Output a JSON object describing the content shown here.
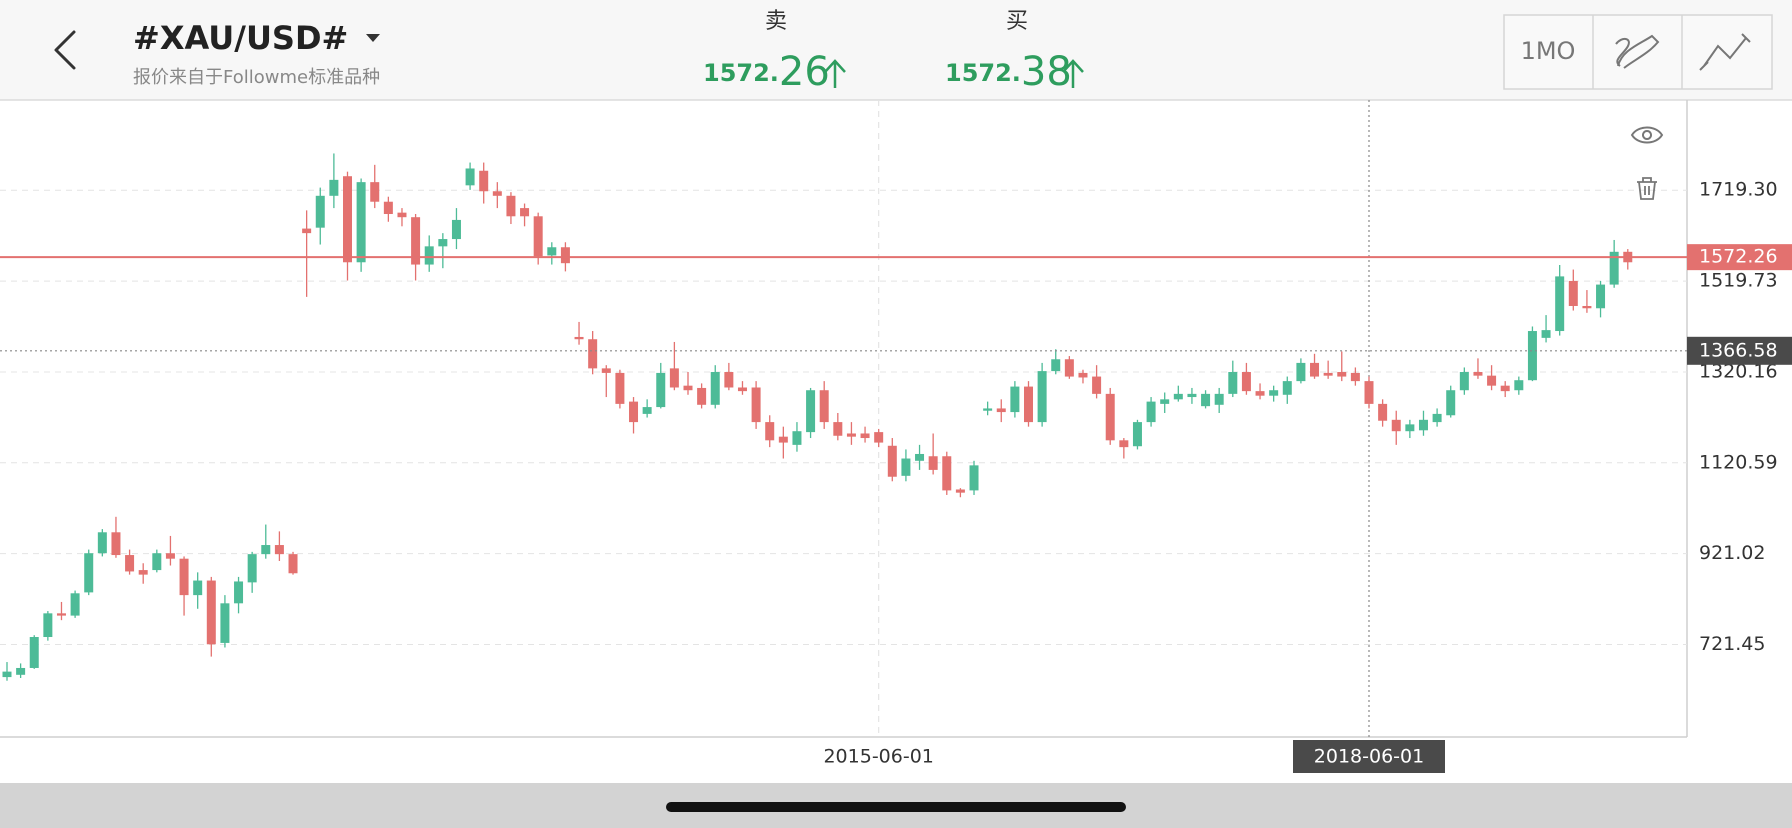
{
  "header": {
    "title": "#XAU/USD#",
    "subtitle": "报价来自于Followme标准品种",
    "sell": {
      "label": "卖",
      "price_int": "1572.",
      "price_frac": "26"
    },
    "buy": {
      "label": "买",
      "price_int": "1572.",
      "price_frac": "38"
    },
    "period": "1MO"
  },
  "chart_data": {
    "type": "candlestick",
    "open": [
      650,
      655,
      670,
      738,
      790,
      785,
      836,
      922,
      968,
      918,
      885,
      885,
      922,
      910,
      830,
      862,
      725,
      812,
      858,
      920,
      940,
      920,
      1635,
      1637,
      1707,
      1750,
      1561,
      1737,
      1694,
      1670,
      1660,
      1556,
      1596,
      1612,
      1730,
      1762,
      1717,
      1707,
      1680,
      1662,
      1576,
      1594,
      1397,
      1392,
      1328,
      1318,
      1255,
      1228,
      1243,
      1328,
      1290,
      1285,
      1248,
      1320,
      1286,
      1286,
      1210,
      1178,
      1160,
      1188,
      1280,
      1210,
      1185,
      1185,
      1188,
      1158,
      1092,
      1125,
      1135,
      1135,
      1062,
      1060,
      1235,
      1240,
      1232,
      1288,
      1210,
      1322,
      1348,
      1318,
      1310,
      1272,
      1170,
      1157,
      1210,
      1250,
      1260,
      1265,
      1245,
      1248,
      1272,
      1320,
      1278,
      1268,
      1270,
      1300,
      1340,
      1318,
      1320,
      1318,
      1300,
      1250,
      1215,
      1190,
      1192,
      1210,
      1225,
      1280,
      1320,
      1312,
      1290,
      1280,
      1302,
      1395,
      1410,
      1520,
      1465,
      1460,
      1512,
      1584
    ],
    "close": [
      662,
      670,
      738,
      790,
      785,
      834,
      922,
      968,
      918,
      882,
      875,
      922,
      910,
      830,
      862,
      722,
      812,
      860,
      920,
      940,
      920,
      878,
      1625,
      1707,
      1742,
      1561,
      1737,
      1694,
      1667,
      1660,
      1556,
      1596,
      1612,
      1654,
      1767,
      1717,
      1707,
      1662,
      1662,
      1574,
      1594,
      1559,
      1392,
      1328,
      1318,
      1250,
      1210,
      1243,
      1318,
      1286,
      1280,
      1248,
      1320,
      1286,
      1278,
      1210,
      1170,
      1165,
      1190,
      1280,
      1210,
      1180,
      1178,
      1175,
      1165,
      1090,
      1130,
      1140,
      1105,
      1060,
      1055,
      1115,
      1240,
      1232,
      1288,
      1210,
      1322,
      1348,
      1310,
      1308,
      1272,
      1170,
      1155,
      1210,
      1255,
      1260,
      1272,
      1272,
      1272,
      1272,
      1320,
      1278,
      1268,
      1280,
      1300,
      1340,
      1310,
      1312,
      1310,
      1300,
      1250,
      1213,
      1190,
      1205,
      1215,
      1228,
      1280,
      1320,
      1312,
      1290,
      1278,
      1302,
      1410,
      1412,
      1530,
      1465,
      1460,
      1512,
      1584,
      1561
    ],
    "high": [
      683,
      680,
      742,
      795,
      815,
      840,
      930,
      975,
      1002,
      930,
      900,
      930,
      960,
      915,
      880,
      870,
      830,
      870,
      925,
      985,
      970,
      925,
      1675,
      1725,
      1800,
      1760,
      1745,
      1775,
      1705,
      1680,
      1667,
      1620,
      1625,
      1680,
      1780,
      1780,
      1737,
      1715,
      1690,
      1670,
      1605,
      1605,
      1430,
      1410,
      1335,
      1325,
      1265,
      1260,
      1340,
      1386,
      1320,
      1295,
      1335,
      1340,
      1300,
      1300,
      1225,
      1200,
      1210,
      1285,
      1300,
      1230,
      1210,
      1200,
      1195,
      1175,
      1150,
      1160,
      1185,
      1145,
      1065,
      1125,
      1255,
      1260,
      1300,
      1300,
      1340,
      1370,
      1355,
      1325,
      1335,
      1285,
      1175,
      1215,
      1265,
      1275,
      1290,
      1285,
      1280,
      1285,
      1345,
      1340,
      1295,
      1290,
      1310,
      1350,
      1360,
      1345,
      1365,
      1330,
      1310,
      1260,
      1235,
      1215,
      1235,
      1240,
      1290,
      1330,
      1350,
      1335,
      1300,
      1310,
      1420,
      1445,
      1555,
      1545,
      1500,
      1520,
      1610,
      1590
    ],
    "low": [
      642,
      648,
      668,
      730,
      775,
      780,
      830,
      915,
      912,
      875,
      855,
      880,
      895,
      785,
      800,
      695,
      715,
      790,
      835,
      910,
      905,
      875,
      1485,
      1600,
      1680,
      1521,
      1540,
      1680,
      1650,
      1640,
      1521,
      1540,
      1548,
      1590,
      1720,
      1690,
      1680,
      1645,
      1640,
      1556,
      1556,
      1541,
      1380,
      1315,
      1265,
      1240,
      1185,
      1220,
      1240,
      1280,
      1270,
      1240,
      1240,
      1280,
      1270,
      1195,
      1155,
      1130,
      1145,
      1175,
      1195,
      1170,
      1160,
      1165,
      1155,
      1080,
      1080,
      1105,
      1095,
      1050,
      1045,
      1050,
      1225,
      1210,
      1220,
      1200,
      1200,
      1315,
      1305,
      1295,
      1262,
      1160,
      1130,
      1150,
      1200,
      1230,
      1255,
      1250,
      1240,
      1230,
      1265,
      1270,
      1260,
      1255,
      1250,
      1295,
      1305,
      1305,
      1300,
      1290,
      1240,
      1200,
      1160,
      1175,
      1180,
      1200,
      1220,
      1270,
      1305,
      1280,
      1265,
      1270,
      1300,
      1385,
      1400,
      1455,
      1450,
      1440,
      1505,
      1545
    ],
    "up_color": "#4dbb97",
    "down_color": "#e3716f",
    "ylim": [
      518.4,
      1917.4
    ],
    "yticks": [
      {
        "value": 1719.3,
        "label": "1719.30"
      },
      1519.73,
      1320.16,
      1120.59,
      921.02,
      721.45
    ],
    "xticks": [
      {
        "value": 64,
        "label": "2015-06-01"
      },
      {
        "value": 100,
        "label": "2018-06-01"
      }
    ],
    "price_line": 1572.26,
    "price_color": "#e3716f",
    "crosshair": 1366.58,
    "grid": true
  }
}
